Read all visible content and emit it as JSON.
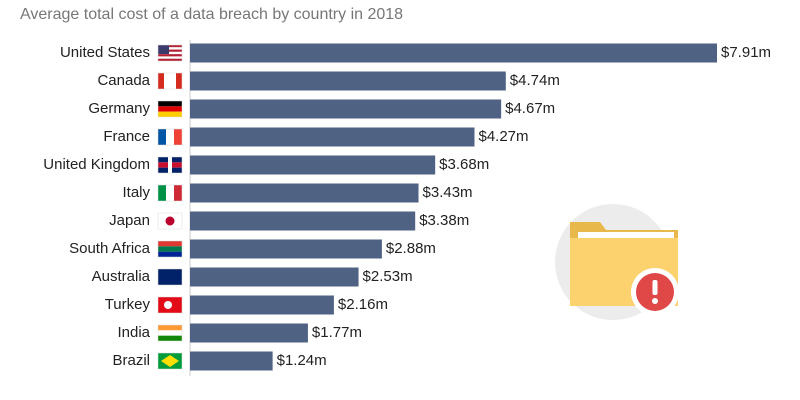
{
  "chart_data": {
    "type": "bar",
    "orientation": "horizontal",
    "subtitle": "Average total cost of a data breach by country in 2018",
    "categories": [
      "United States",
      "Canada",
      "Germany",
      "France",
      "United Kingdom",
      "Italy",
      "Japan",
      "South Africa",
      "Australia",
      "Turkey",
      "India",
      "Brazil"
    ],
    "values": [
      7.91,
      4.74,
      4.67,
      4.27,
      3.68,
      3.43,
      3.38,
      2.88,
      2.53,
      2.16,
      1.77,
      1.24
    ],
    "value_labels": [
      "$7.91m",
      "$4.74m",
      "$4.67m",
      "$4.27m",
      "$3.68m",
      "$3.43m",
      "$3.38m",
      "$2.88m",
      "$2.53m",
      "$2.16m",
      "$1.77m",
      "$1.24m"
    ],
    "color": "#4f6284"
  }
}
